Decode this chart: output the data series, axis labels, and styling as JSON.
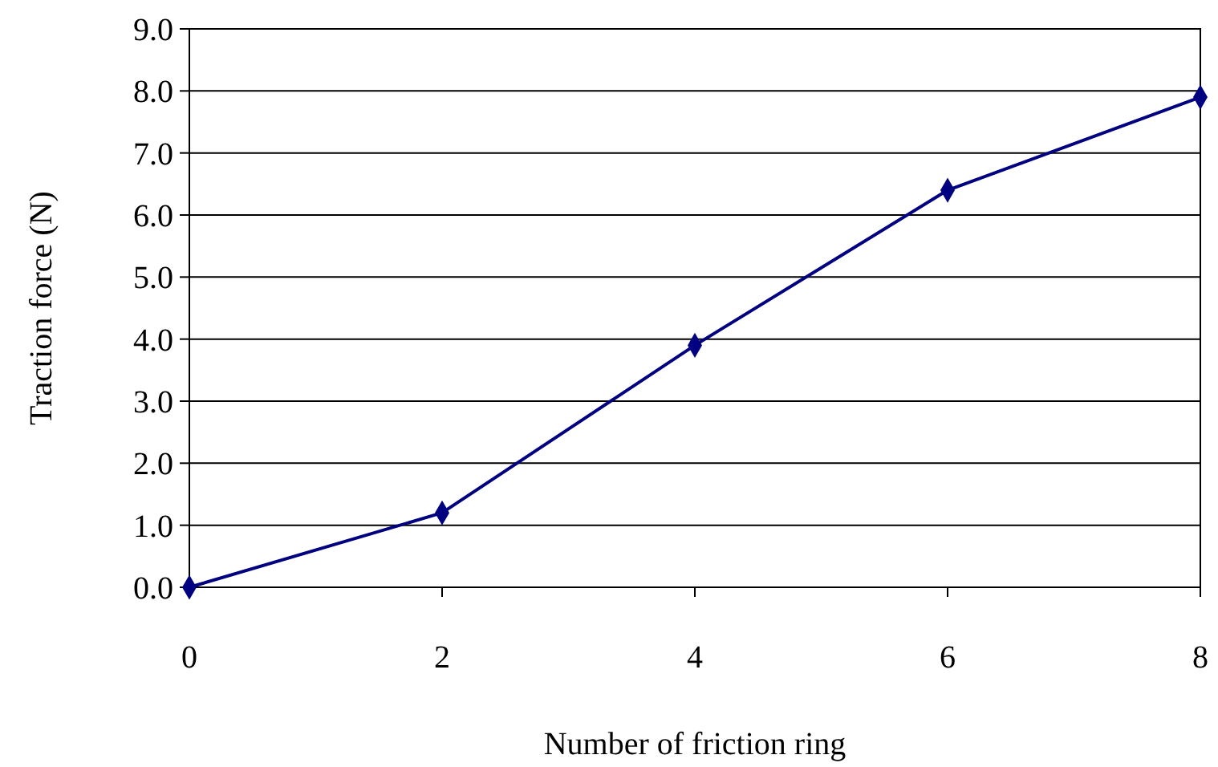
{
  "chart_data": {
    "type": "line",
    "xlabel": "Number of friction ring",
    "ylabel": "Traction force (N)",
    "x": [
      0,
      2,
      4,
      6,
      8
    ],
    "series": [
      {
        "color": "#000080",
        "values": [
          0,
          1.2,
          3.9,
          6.4,
          7.9
        ]
      }
    ],
    "xlim": [
      0,
      8
    ],
    "xticks": [
      0,
      2,
      4,
      6,
      8
    ],
    "ylim": [
      0,
      9
    ],
    "yticks": [
      {
        "value": 0,
        "label": "0.0"
      },
      {
        "value": 1,
        "label": "1.0"
      },
      {
        "value": 2,
        "label": "2.0"
      },
      {
        "value": 3,
        "label": "3.0"
      },
      {
        "value": 4,
        "label": "4.0"
      },
      {
        "value": 5,
        "label": "5.0"
      },
      {
        "value": 6,
        "label": "6.0"
      },
      {
        "value": 7,
        "label": "7.0"
      },
      {
        "value": 8,
        "label": "8.0"
      },
      {
        "value": 9,
        "label": "9.0"
      }
    ],
    "grid": "y",
    "marker": "diamond",
    "line_style": "solid"
  }
}
